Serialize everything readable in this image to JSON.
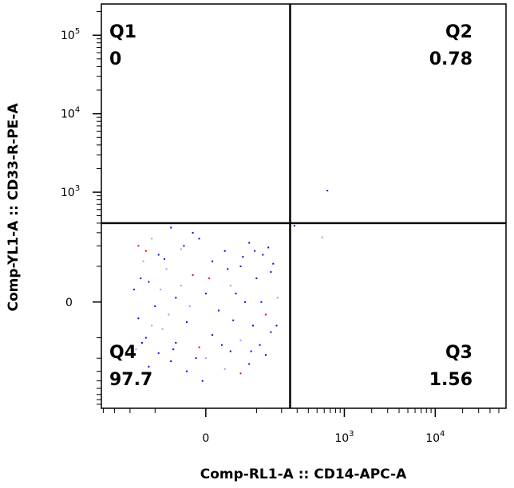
{
  "chart_data": {
    "type": "scatter",
    "xlabel": "Comp-RL1-A :: CD14-APC-A",
    "ylabel": "Comp-YL1-A :: CD33-R-PE-A",
    "x_scale": "biexponential",
    "y_scale": "biexponential",
    "x_ticks": [
      {
        "value": 0,
        "base": "0",
        "exp": ""
      },
      {
        "value": 1000,
        "base": "10",
        "exp": "3"
      },
      {
        "value": 10000,
        "base": "10",
        "exp": "4"
      }
    ],
    "y_ticks": [
      {
        "value": 0,
        "base": "0",
        "exp": ""
      },
      {
        "value": 1000,
        "base": "10",
        "exp": "3"
      },
      {
        "value": 10000,
        "base": "10",
        "exp": "4"
      },
      {
        "value": 100000,
        "base": "10",
        "exp": "5"
      }
    ],
    "gate": {
      "x": 250,
      "y": 400
    },
    "quadrants": [
      {
        "name": "Q1",
        "value": "0",
        "corner": "top-left"
      },
      {
        "name": "Q2",
        "value": "0.78",
        "corner": "top-right"
      },
      {
        "name": "Q3",
        "value": "1.56",
        "corner": "bottom-right"
      },
      {
        "name": "Q4",
        "value": "97.7",
        "corner": "bottom-left"
      }
    ],
    "point_colors": [
      "#0000ff",
      "#9999ff",
      "#ff0000"
    ],
    "points": [
      [
        650,
        1050
      ],
      [
        -20,
        300
      ],
      [
        -60,
        350
      ],
      [
        -110,
        250
      ],
      [
        -10,
        250
      ],
      [
        -160,
        200
      ],
      [
        80,
        220
      ],
      [
        -40,
        180
      ],
      [
        30,
        170
      ],
      [
        120,
        150
      ],
      [
        -90,
        150
      ],
      [
        -140,
        120
      ],
      [
        10,
        120
      ],
      [
        60,
        100
      ],
      [
        150,
        80
      ],
      [
        -70,
        90
      ],
      [
        -20,
        70
      ],
      [
        100,
        60
      ],
      [
        -120,
        50
      ],
      [
        40,
        40
      ],
      [
        -180,
        30
      ],
      [
        0,
        20
      ],
      [
        -50,
        10
      ],
      [
        180,
        10
      ],
      [
        70,
        0
      ],
      [
        -100,
        -10
      ],
      [
        20,
        -20
      ],
      [
        130,
        -30
      ],
      [
        -160,
        -40
      ],
      [
        -30,
        -50
      ],
      [
        90,
        -60
      ],
      [
        -80,
        -70
      ],
      [
        150,
        -80
      ],
      [
        10,
        -90
      ],
      [
        -130,
        -100
      ],
      [
        60,
        -110
      ],
      [
        -50,
        -120
      ],
      [
        110,
        -130
      ],
      [
        -10,
        -140
      ],
      [
        -170,
        -150
      ],
      [
        40,
        -160
      ],
      [
        -90,
        -170
      ],
      [
        130,
        -180
      ],
      [
        0,
        -200
      ],
      [
        -60,
        -220
      ],
      [
        80,
        -240
      ],
      [
        -120,
        -260
      ],
      [
        30,
        -280
      ],
      [
        -30,
        -300
      ],
      [
        60,
        -320
      ],
      [
        -5,
        -400
      ],
      [
        -40,
        40
      ],
      [
        50,
        20
      ],
      [
        -150,
        60
      ],
      [
        160,
        110
      ],
      [
        -25,
        -10
      ],
      [
        45,
        -45
      ],
      [
        -75,
        130
      ],
      [
        95,
        170
      ],
      [
        -110,
        -60
      ],
      [
        5,
        60
      ],
      [
        -35,
        200
      ],
      [
        115,
        0
      ],
      [
        -65,
        -30
      ],
      [
        25,
        -130
      ],
      [
        -145,
        -120
      ],
      [
        175,
        -60
      ],
      [
        -85,
        30
      ],
      [
        65,
        140
      ],
      [
        -15,
        -200
      ],
      [
        140,
        190
      ],
      [
        -130,
        170
      ],
      [
        35,
        90
      ],
      [
        -55,
        -150
      ],
      [
        85,
        -160
      ],
      [
        570,
        260
      ],
      [
        280,
        370
      ]
    ]
  }
}
